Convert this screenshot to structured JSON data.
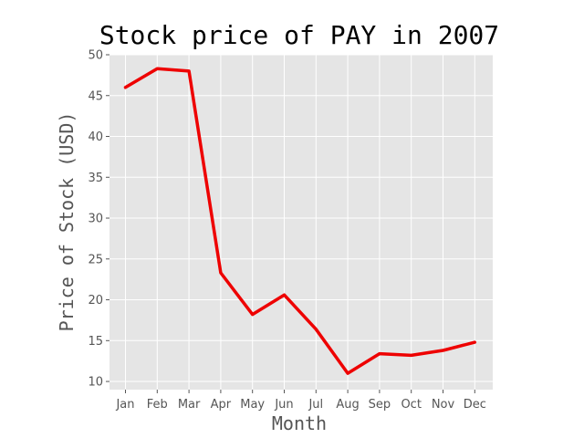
{
  "chart_data": {
    "type": "line",
    "title": "Stock price of PAY in 2007",
    "xlabel": "Month",
    "ylabel": "Price of Stock (USD)",
    "categories": [
      "Jan",
      "Feb",
      "Mar",
      "Apr",
      "May",
      "Jun",
      "Jul",
      "Aug",
      "Sep",
      "Oct",
      "Nov",
      "Dec"
    ],
    "series": [
      {
        "values": [
          46.0,
          48.3,
          48.0,
          23.3,
          18.2,
          20.6,
          16.4,
          11.0,
          13.4,
          13.2,
          13.8,
          14.8
        ]
      }
    ],
    "ylim": [
      9,
      50
    ],
    "yticks": [
      10,
      15,
      20,
      25,
      30,
      35,
      40,
      45,
      50
    ],
    "grid": true,
    "colors": {
      "line": "#ee0000",
      "plot_background": "#e5e5e5",
      "grid": "#ffffff"
    }
  }
}
